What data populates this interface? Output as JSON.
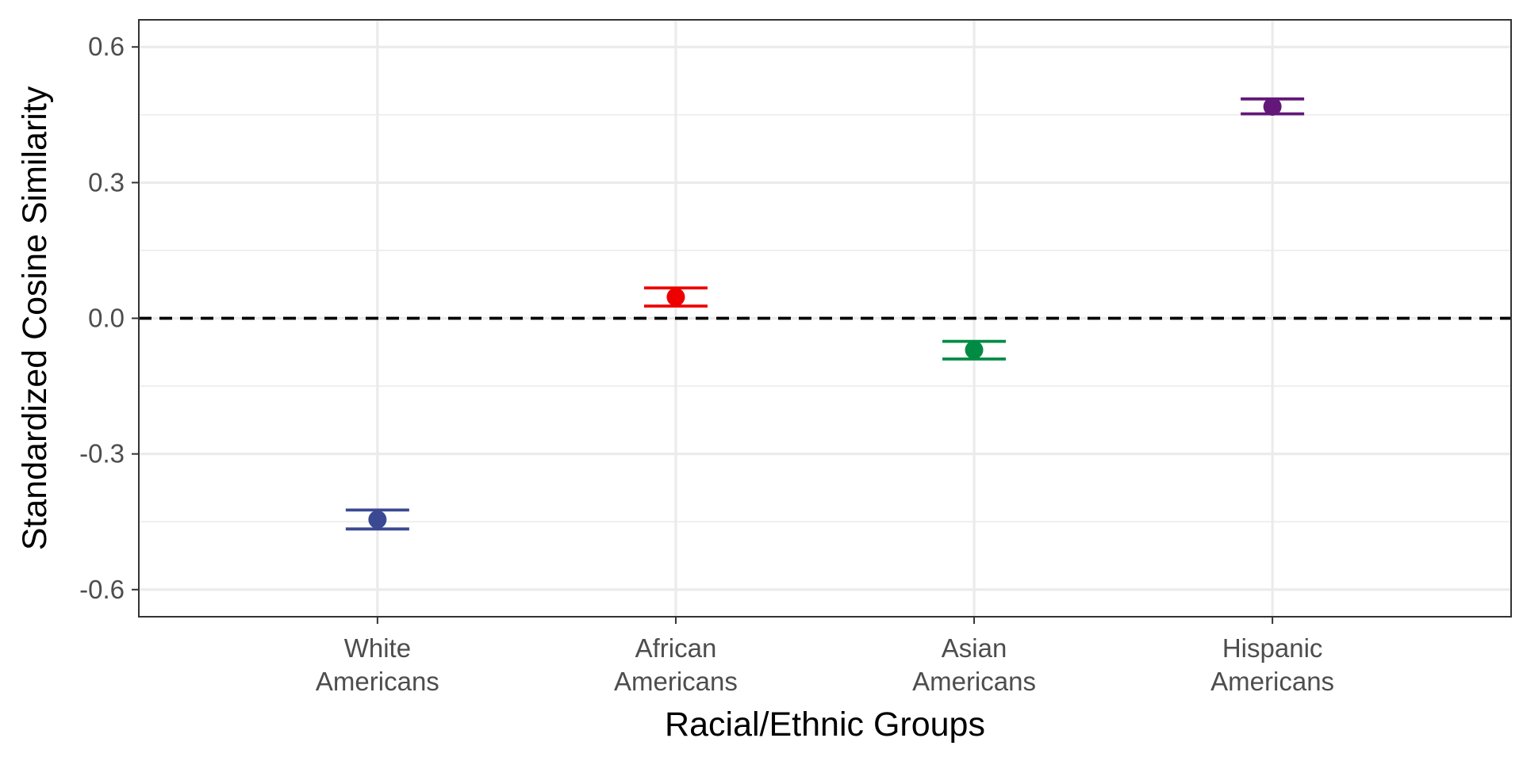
{
  "chart_data": {
    "type": "scatter",
    "variant": "point-with-errorbars",
    "title": "",
    "xlabel": "Racial/Ethnic Groups",
    "ylabel": "Standardized Cosine Similarity",
    "ylim": [
      -0.66,
      0.66
    ],
    "yticks": [
      -0.6,
      -0.3,
      0.0,
      0.3,
      0.6
    ],
    "ytick_labels": [
      "-0.6",
      "-0.3",
      "0.0",
      "0.3",
      "0.6"
    ],
    "y_minor_ticks": [
      -0.45,
      -0.15,
      0.15,
      0.45
    ],
    "categories": [
      {
        "label_line1": "White",
        "label_line2": "Americans"
      },
      {
        "label_line1": "African",
        "label_line2": "Americans"
      },
      {
        "label_line1": "Asian",
        "label_line2": "Americans"
      },
      {
        "label_line1": "Hispanic",
        "label_line2": "Americans"
      }
    ],
    "points": [
      {
        "category": "White Americans",
        "value": -0.445,
        "ci_low": -0.466,
        "ci_high": -0.424,
        "color": "#3B4992"
      },
      {
        "category": "African Americans",
        "value": 0.047,
        "ci_low": 0.027,
        "ci_high": 0.067,
        "color": "#EE0000"
      },
      {
        "category": "Asian Americans",
        "value": -0.07,
        "ci_low": -0.09,
        "ci_high": -0.051,
        "color": "#008B45"
      },
      {
        "category": "Hispanic Americans",
        "value": 0.468,
        "ci_low": 0.452,
        "ci_high": 0.485,
        "color": "#631879"
      }
    ],
    "reference_line": {
      "y": 0.0,
      "style": "dashed",
      "color": "#000000"
    },
    "grid": true,
    "theme": "bw",
    "legend": "none"
  }
}
